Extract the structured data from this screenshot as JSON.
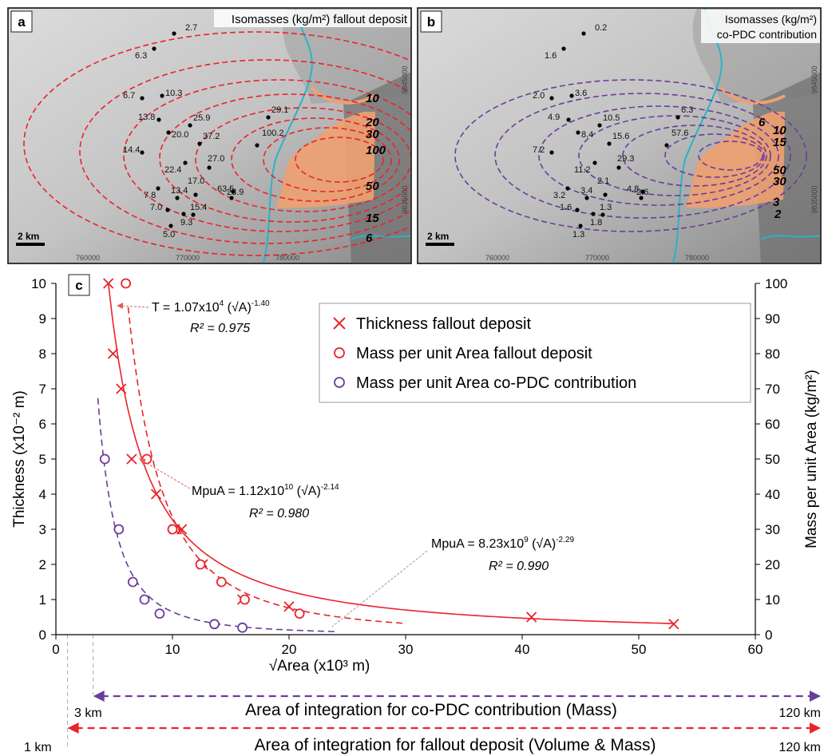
{
  "colors": {
    "fallout": "#e8242b",
    "copdc": "#6a3d9a",
    "river": "#2bb3c4",
    "pdc_deposit": "#f0a070",
    "grid_tick": "#666666"
  },
  "panel_a": {
    "letter": "a",
    "title": "Isomasses (kg/m²) fallout deposit",
    "scalebar": "2 km",
    "ticks_x": [
      "760000",
      "770000",
      "780000"
    ],
    "ticks_y": [
      "9845000",
      "9835000"
    ],
    "contour_labels": [
      "10",
      "20",
      "30",
      "100",
      "50",
      "15",
      "6"
    ],
    "points": [
      {
        "v": "2.7"
      },
      {
        "v": "6.3"
      },
      {
        "v": "6.7"
      },
      {
        "v": "10.3"
      },
      {
        "v": "13.8"
      },
      {
        "v": "25.9"
      },
      {
        "v": "29.1"
      },
      {
        "v": "20.0"
      },
      {
        "v": "37.2"
      },
      {
        "v": "100.2"
      },
      {
        "v": "14.4"
      },
      {
        "v": "22.4"
      },
      {
        "v": "27.0"
      },
      {
        "v": "63.5"
      },
      {
        "v": "7.8"
      },
      {
        "v": "13.4"
      },
      {
        "v": "17.0"
      },
      {
        "v": "23.9"
      },
      {
        "v": "7.0"
      },
      {
        "v": "15.4"
      },
      {
        "v": "9.3"
      },
      {
        "v": "5.0"
      }
    ]
  },
  "panel_b": {
    "letter": "b",
    "title_line1": "Isomasses (kg/m²)",
    "title_line2": "co-PDC contribution",
    "scalebar": "2 km",
    "ticks_x": [
      "760000",
      "770000",
      "780000"
    ],
    "ticks_y": [
      "9845000",
      "9835000"
    ],
    "contour_labels": [
      "6",
      "10",
      "15",
      "50",
      "30",
      "3",
      "2"
    ],
    "points": [
      {
        "v": "0.2"
      },
      {
        "v": "1.6"
      },
      {
        "v": "2.0"
      },
      {
        "v": "3.6"
      },
      {
        "v": "4.9"
      },
      {
        "v": "10.5"
      },
      {
        "v": "6.3"
      },
      {
        "v": "8.4"
      },
      {
        "v": "15.6"
      },
      {
        "v": "57.6"
      },
      {
        "v": "7.2"
      },
      {
        "v": "11.2"
      },
      {
        "v": "29.3"
      },
      {
        "v": "4.8"
      },
      {
        "v": "3.2"
      },
      {
        "v": "3.4"
      },
      {
        "v": "2.1"
      },
      {
        "v": "2.6"
      },
      {
        "v": "1.6"
      },
      {
        "v": "1.3"
      },
      {
        "v": "1.8"
      },
      {
        "v": "1.3"
      }
    ]
  },
  "chart_data": {
    "panel_letter": "c",
    "type": "scatter",
    "xlabel": "√Area (x10³ m)",
    "ylabel_left": "Thickness (x10⁻² m)",
    "ylabel_right": "Mass per unit Area (kg/m²)",
    "xlim": [
      0,
      60
    ],
    "ylim_left": [
      0,
      10
    ],
    "ylim_right": [
      0,
      100
    ],
    "xticks": [
      0,
      10,
      20,
      30,
      40,
      50,
      60
    ],
    "yticks_left": [
      0,
      1,
      2,
      3,
      4,
      5,
      6,
      7,
      8,
      9,
      10
    ],
    "yticks_right": [
      0,
      10,
      20,
      30,
      40,
      50,
      60,
      70,
      80,
      90,
      100
    ],
    "legend": [
      "Thickness fallout deposit",
      "Mass per unit Area fallout deposit",
      "Mass per unit Area co-PDC contribution"
    ],
    "series": [
      {
        "name": "Thickness fallout deposit",
        "marker": "x",
        "axis": "left",
        "points": [
          [
            4.5,
            10
          ],
          [
            4.9,
            8
          ],
          [
            5.6,
            7
          ],
          [
            6.5,
            5
          ],
          [
            8.6,
            4
          ],
          [
            10.2,
            3
          ],
          [
            10.8,
            3
          ],
          [
            12.6,
            2
          ],
          [
            16,
            1
          ],
          [
            20,
            0.8
          ],
          [
            40.8,
            0.5
          ],
          [
            53,
            0.3
          ]
        ]
      },
      {
        "name": "Mass per unit Area fallout deposit",
        "marker": "o",
        "axis": "right",
        "points": [
          [
            6,
            100
          ],
          [
            7.8,
            50
          ],
          [
            10,
            30
          ],
          [
            12.4,
            20
          ],
          [
            14.2,
            15
          ],
          [
            16.2,
            10
          ],
          [
            20.9,
            6
          ]
        ]
      },
      {
        "name": "Mass per unit Area co-PDC contribution",
        "marker": "o",
        "axis": "right",
        "points": [
          [
            4.2,
            50
          ],
          [
            5.4,
            30
          ],
          [
            6.6,
            15
          ],
          [
            7.6,
            10
          ],
          [
            8.9,
            6
          ],
          [
            13.6,
            3
          ],
          [
            16,
            2
          ]
        ]
      }
    ],
    "fits": [
      {
        "series": "Thickness fallout deposit",
        "eq_prefix": "T = 1.07x10",
        "eq_exp1": "4",
        "eq_mid": " (√A)",
        "eq_exp2": "-1.40",
        "r2": "R² = 0.975"
      },
      {
        "series": "Mass per unit Area fallout deposit",
        "eq_prefix": "MpuA = 1.12x10",
        "eq_exp1": "10",
        "eq_mid": " (√A)",
        "eq_exp2": "-2.14",
        "r2": "R² = 0.980"
      },
      {
        "series": "Mass per unit Area co-PDC contribution",
        "eq_prefix": "MpuA = 8.23x10",
        "eq_exp1": "9",
        "eq_mid": " (√A)",
        "eq_exp2": "-2.29",
        "r2": "R² = 0.990"
      }
    ],
    "integration": [
      {
        "label": "Area of integration for co-PDC contribution (Mass)",
        "start": "3 km",
        "end": "120 km"
      },
      {
        "label": "Area of integration for fallout deposit (Volume & Mass)",
        "start": "1 km",
        "end": "120 km"
      }
    ]
  }
}
